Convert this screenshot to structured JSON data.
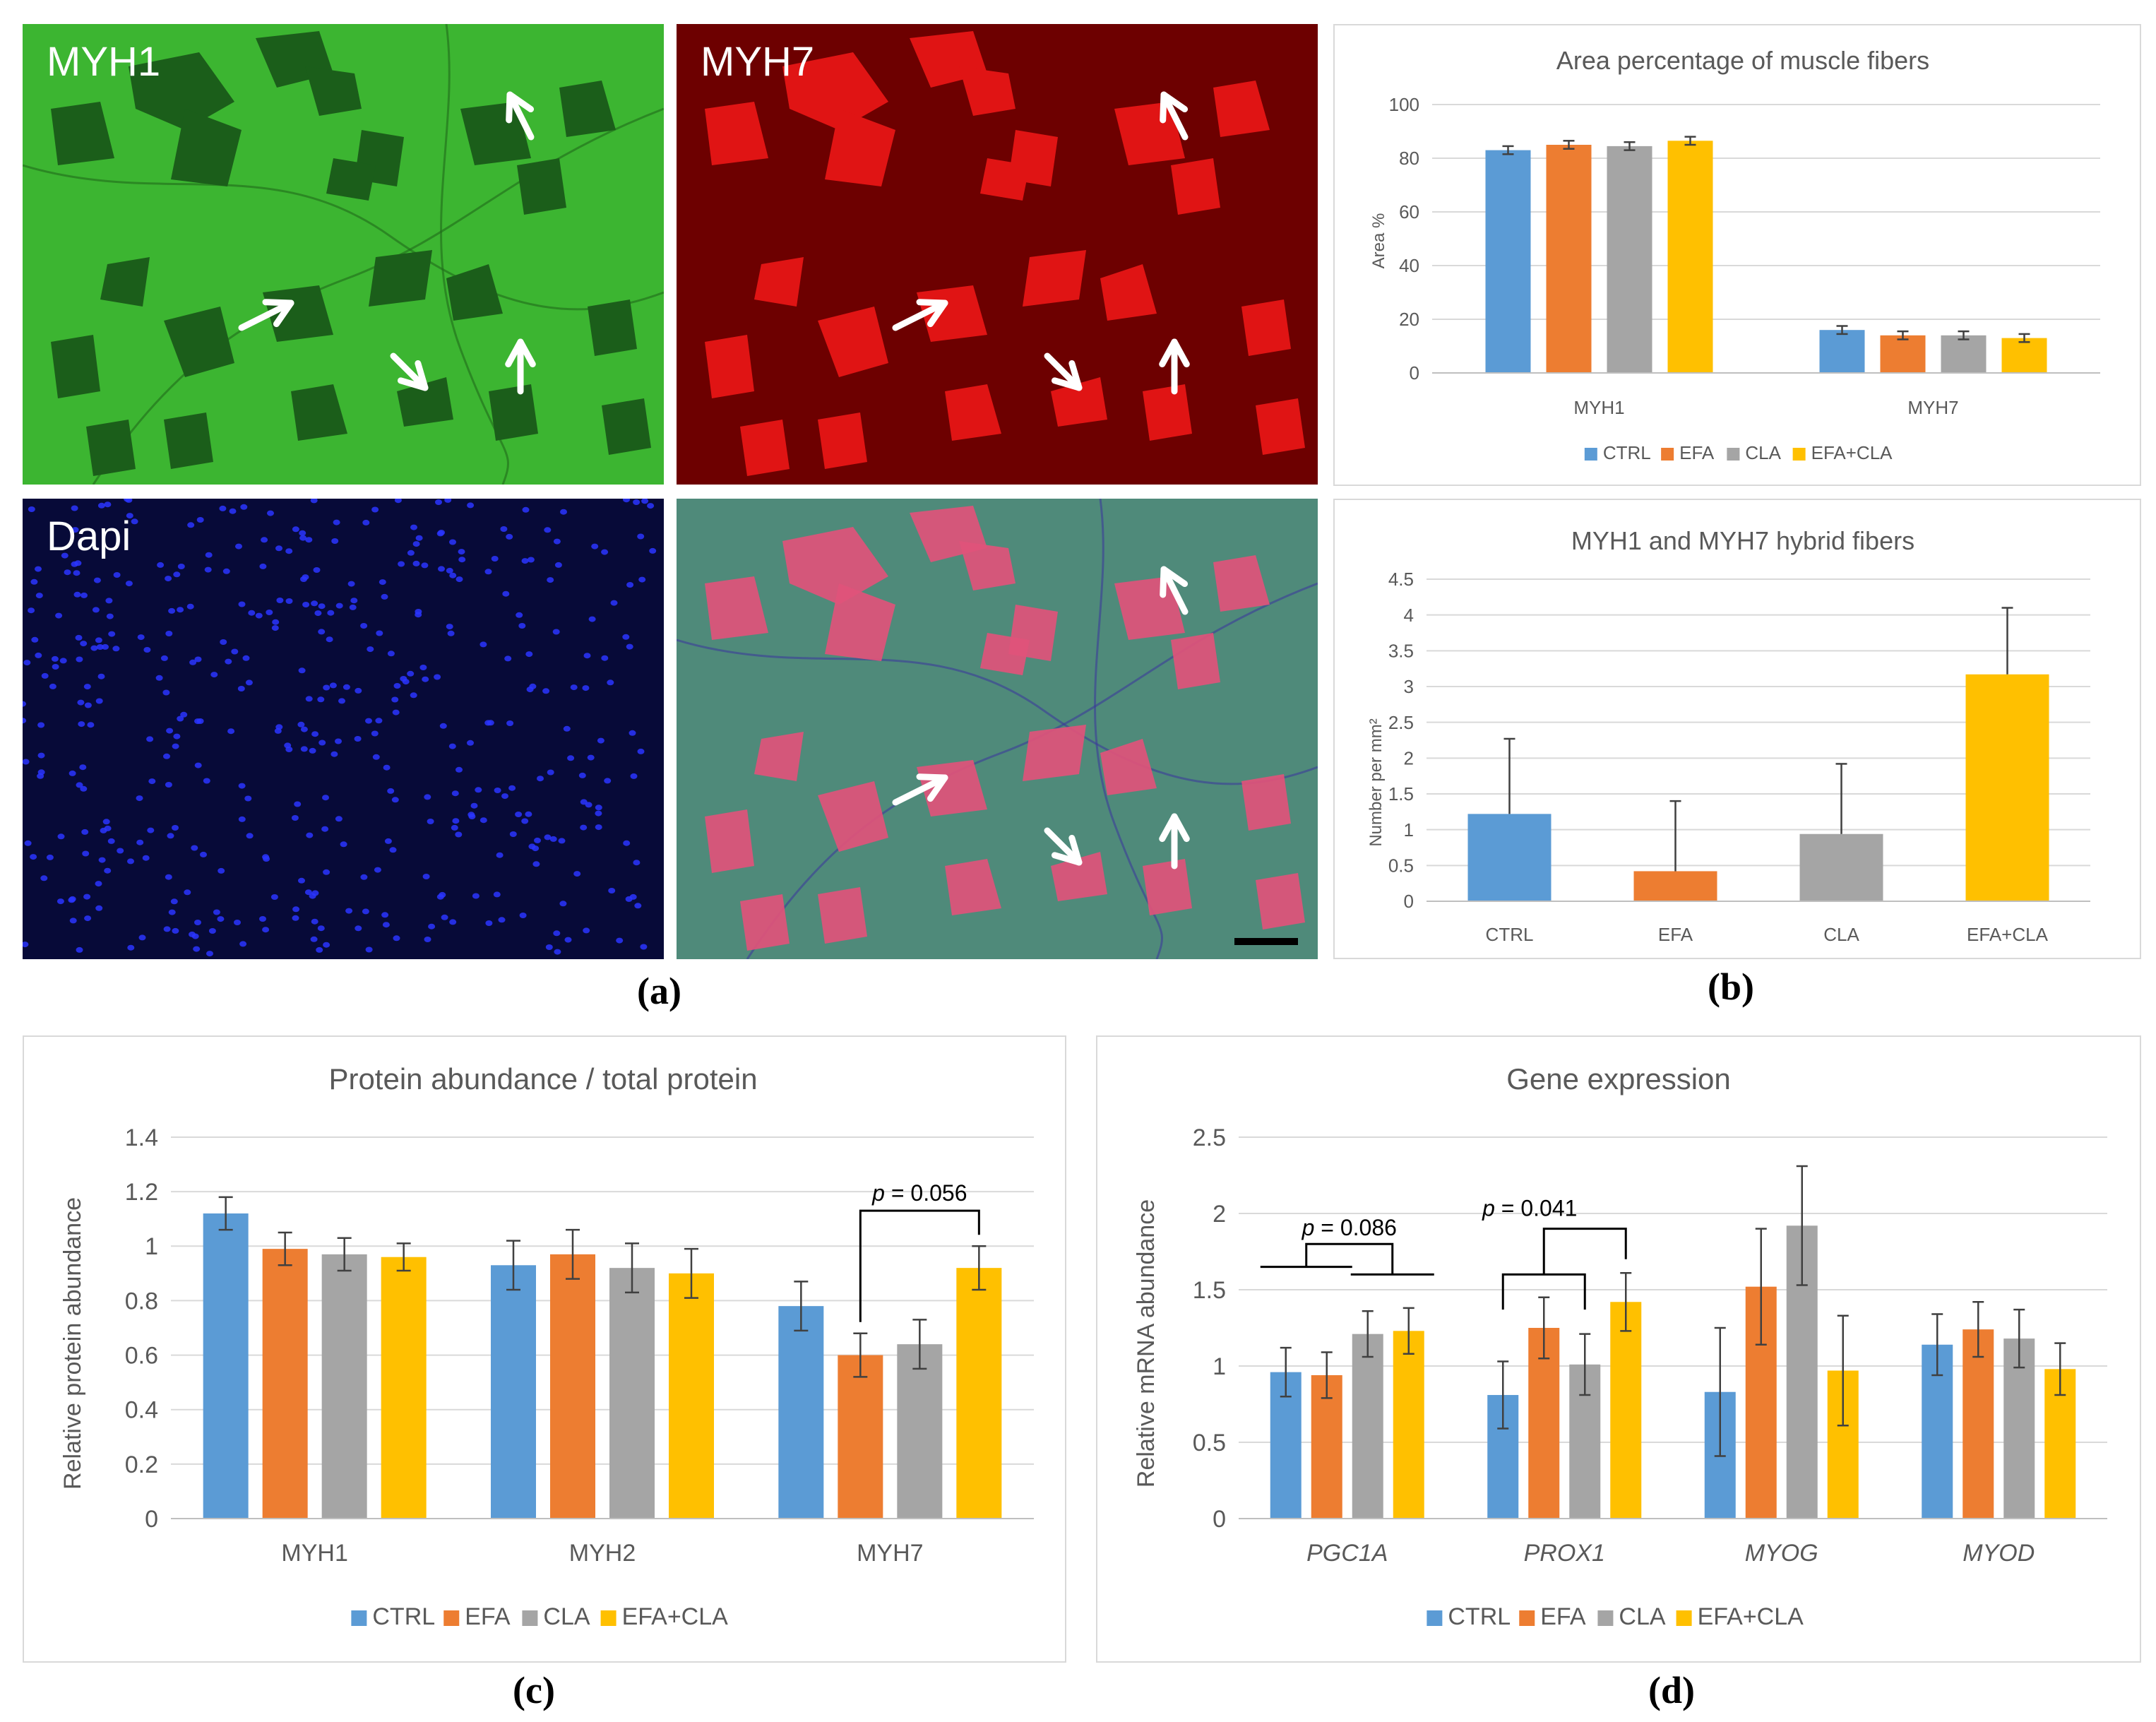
{
  "micrographs": {
    "myh1": {
      "label": "MYH1",
      "bg": "#3cb531",
      "fiber": "#1b5e1a"
    },
    "myh7": {
      "label": "MYH7",
      "bg": "#6d0000",
      "fiber": "#e01414"
    },
    "dapi": {
      "label": "Dapi",
      "bg": "#070a38",
      "nuclei": "#2a35ff"
    },
    "merge": {
      "label": "",
      "bg": "#4f8a7a",
      "fiber": "#e0527a"
    }
  },
  "panel_labels": {
    "a": "(a)",
    "b": "(b)",
    "c": "(c)",
    "d": "(d)"
  },
  "colors": {
    "CTRL": "#5b9bd5",
    "EFA": "#ed7d31",
    "CLA": "#a5a5a5",
    "EFA+CLA": "#ffc000"
  },
  "legend": [
    "CTRL",
    "EFA",
    "CLA",
    "EFA+CLA"
  ],
  "chart_data": [
    {
      "id": "b1",
      "type": "bar",
      "title": "Area percentage of muscle fibers",
      "ylabel": "Area %",
      "xlabel": "",
      "ylim": [
        0,
        100
      ],
      "yticks": [
        "0",
        "20",
        "40",
        "60",
        "80",
        "100"
      ],
      "categories": [
        "MYH1",
        "MYH7"
      ],
      "series": [
        {
          "name": "CTRL",
          "values": [
            83,
            16
          ],
          "err": [
            1.5,
            1.5
          ]
        },
        {
          "name": "EFA",
          "values": [
            85,
            14
          ],
          "err": [
            1.5,
            1.5
          ]
        },
        {
          "name": "CLA",
          "values": [
            84.5,
            14
          ],
          "err": [
            1.5,
            1.5
          ]
        },
        {
          "name": "EFA+CLA",
          "values": [
            86.5,
            13
          ],
          "err": [
            1.5,
            1.5
          ]
        }
      ]
    },
    {
      "id": "b2",
      "type": "bar",
      "title": "MYH1 and MYH7 hybrid fibers",
      "ylabel": "Number per mm²",
      "xlabel": "",
      "ylim": [
        0,
        4.5
      ],
      "yticks": [
        "0",
        "0.5",
        "1",
        "1.5",
        "2",
        "2.5",
        "3",
        "3.5",
        "4",
        "4.5"
      ],
      "categories": [
        "CTRL",
        "EFA",
        "CLA",
        "EFA+CLA"
      ],
      "values": [
        1.22,
        0.42,
        0.94,
        3.17
      ],
      "err": [
        1.05,
        0.98,
        0.98,
        0.93
      ]
    },
    {
      "id": "c",
      "type": "bar",
      "title": "Protein abundance / total protein",
      "ylabel": "Relative protein abundance",
      "xlabel": "",
      "ylim": [
        0,
        1.4
      ],
      "yticks": [
        "0",
        "0.2",
        "0.4",
        "0.6",
        "0.8",
        "1",
        "1.2",
        "1.4"
      ],
      "categories": [
        "MYH1",
        "MYH2",
        "MYH7"
      ],
      "series": [
        {
          "name": "CTRL",
          "values": [
            1.12,
            0.93,
            0.78
          ],
          "err": [
            0.06,
            0.09,
            0.09
          ]
        },
        {
          "name": "EFA",
          "values": [
            0.99,
            0.97,
            0.6
          ],
          "err": [
            0.06,
            0.09,
            0.08
          ]
        },
        {
          "name": "CLA",
          "values": [
            0.97,
            0.92,
            0.64
          ],
          "err": [
            0.06,
            0.09,
            0.09
          ]
        },
        {
          "name": "EFA+CLA",
          "values": [
            0.96,
            0.9,
            0.92
          ],
          "err": [
            0.05,
            0.09,
            0.08
          ]
        }
      ],
      "annotation": {
        "p_italic": "p",
        "text": " = 0.056"
      }
    },
    {
      "id": "d",
      "type": "bar",
      "title": "Gene expression",
      "ylabel": "Relative mRNA abundance",
      "xlabel": "",
      "ylim": [
        0,
        2.5
      ],
      "yticks": [
        "0",
        "0.5",
        "1",
        "1.5",
        "2",
        "2.5"
      ],
      "categories": [
        "PGC1A",
        "PROX1",
        "MYOG",
        "MYOD"
      ],
      "series": [
        {
          "name": "CTRL",
          "values": [
            0.96,
            0.81,
            0.83,
            1.14
          ],
          "err": [
            0.16,
            0.22,
            0.42,
            0.2
          ]
        },
        {
          "name": "EFA",
          "values": [
            0.94,
            1.25,
            1.52,
            1.24
          ],
          "err": [
            0.15,
            0.2,
            0.38,
            0.18
          ]
        },
        {
          "name": "CLA",
          "values": [
            1.21,
            1.01,
            1.92,
            1.18
          ],
          "err": [
            0.15,
            0.2,
            0.39,
            0.19
          ]
        },
        {
          "name": "EFA+CLA",
          "values": [
            1.23,
            1.42,
            0.97,
            0.98
          ],
          "err": [
            0.15,
            0.19,
            0.36,
            0.17
          ]
        }
      ],
      "annotations": [
        {
          "p_italic": "p",
          "text": " = 0.086"
        },
        {
          "p_italic": "p",
          "text": " = 0.041"
        }
      ]
    }
  ]
}
